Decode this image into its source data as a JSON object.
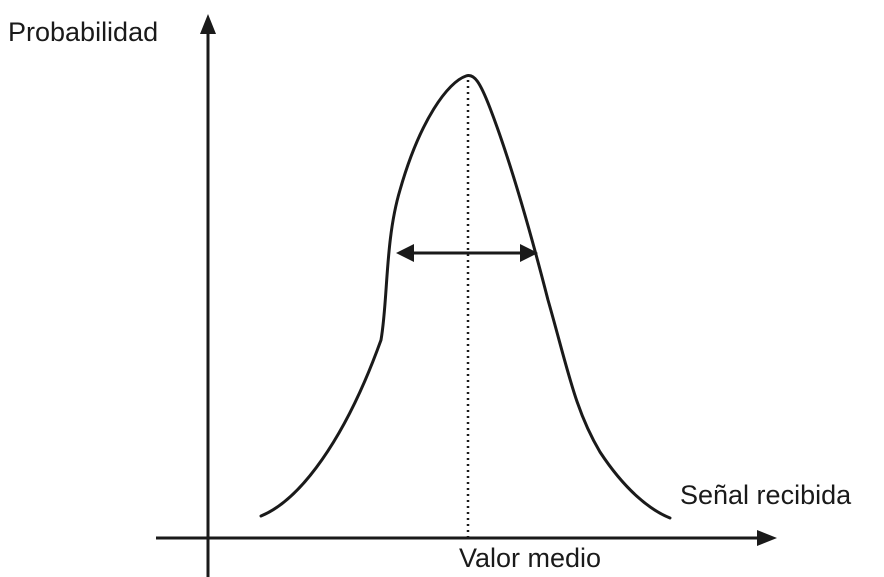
{
  "labels": {
    "y_axis": "Probabilidad",
    "x_axis": "Señal recibida",
    "mean": "Valor medio"
  },
  "colors": {
    "ink": "#1a1a1a",
    "background": "#ffffff"
  }
}
